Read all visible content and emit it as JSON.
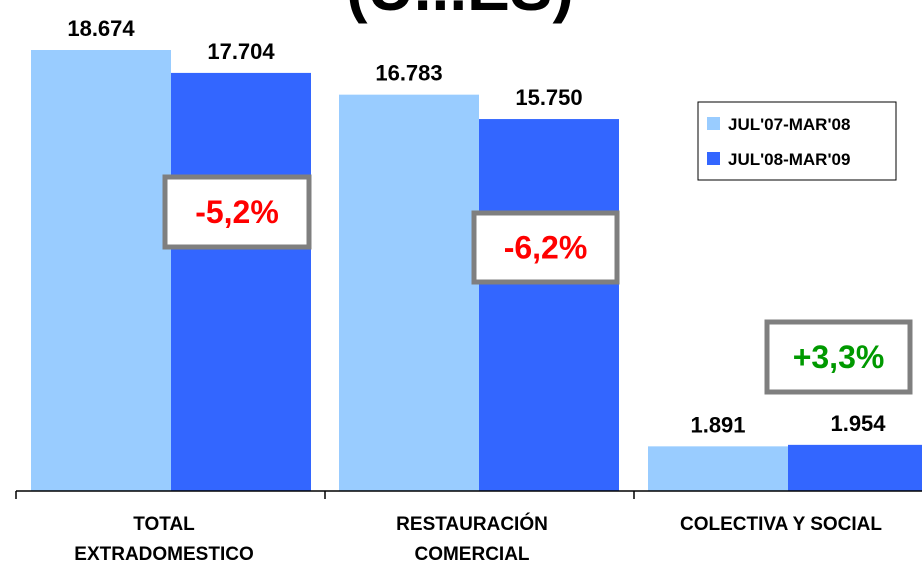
{
  "chart_data": {
    "type": "bar",
    "title": "(U...ES)",
    "categories": [
      [
        "TOTAL",
        "EXTRADOMESTICO"
      ],
      [
        "RESTAURACIÓN",
        "COMERCIAL"
      ],
      [
        "COLECTIVA Y SOCIAL"
      ]
    ],
    "series": [
      {
        "name": "JUL'07-MAR'08",
        "color": "#99ccff",
        "values": [
          18674,
          16783,
          1891
        ],
        "labels": [
          "18.674",
          "16.783",
          "1.891"
        ]
      },
      {
        "name": "JUL'08-MAR'09",
        "color": "#3366ff",
        "values": [
          17704,
          15750,
          1954
        ],
        "labels": [
          "17.704",
          "15.750",
          "1.954"
        ]
      }
    ],
    "changes": [
      {
        "label": "-5,2%",
        "color": "#ff0000"
      },
      {
        "label": "-6,2%",
        "color": "#ff0000"
      },
      {
        "label": "+3,3%",
        "color": "#009900"
      }
    ],
    "ylim": [
      0,
      18674
    ],
    "grid": false,
    "legend_position": "right"
  }
}
